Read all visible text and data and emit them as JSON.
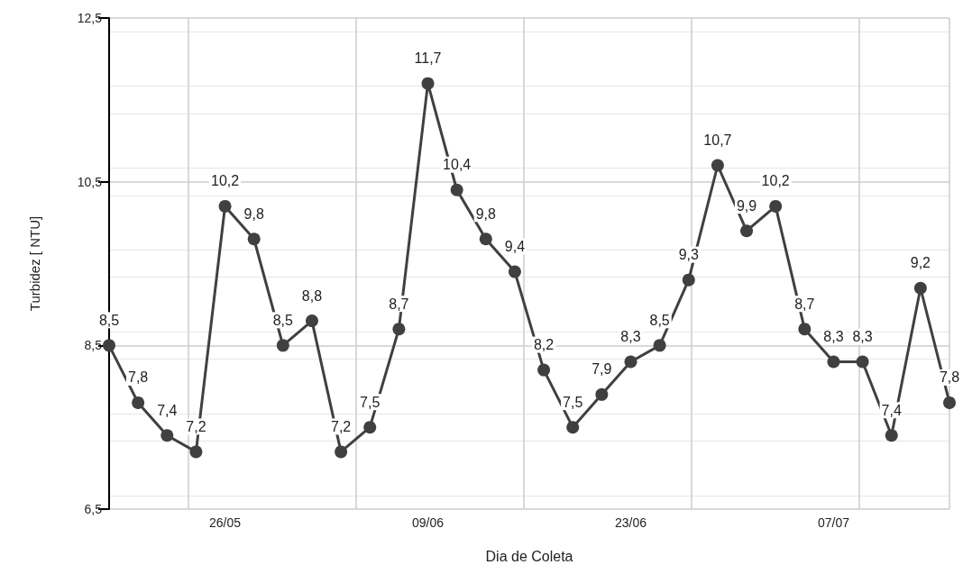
{
  "chart_data": {
    "type": "line",
    "xlabel": "Dia de Coleta",
    "ylabel": "Turbidez [ NTU]",
    "x": [
      "--05-18",
      "--05-20",
      "--05-22",
      "--05-24",
      "--05-26",
      "--05-28",
      "--05-30",
      "--06-01",
      "--06-03",
      "--06-05",
      "--06-07",
      "--06-09",
      "--06-11",
      "--06-13",
      "--06-15",
      "--06-17",
      "--06-19",
      "--06-21",
      "--06-23",
      "--06-25",
      "--06-27",
      "--06-29",
      "--07-01",
      "--07-03",
      "--07-05",
      "--07-07",
      "--07-09",
      "--07-11",
      "--07-13",
      "--07-15"
    ],
    "series": [
      {
        "color": "#404040",
        "values": [
          8.5,
          7.8,
          7.4,
          7.2,
          10.2,
          9.8,
          8.5,
          8.8,
          7.2,
          7.5,
          8.7,
          11.7,
          10.4,
          9.8,
          9.4,
          8.2,
          7.5,
          7.9,
          8.3,
          8.5,
          9.3,
          10.7,
          9.9,
          10.2,
          8.7,
          8.3,
          8.3,
          7.4,
          9.2,
          7.8
        ],
        "value_labels": [
          "8,5",
          "7,8",
          "7,4",
          "7,2",
          "10,2",
          "9,8",
          "8,5",
          "8,8",
          "7,2",
          "7,5",
          "8,7",
          "11,7",
          "10,4",
          "9,8",
          "9,4",
          "8,2",
          "7,5",
          "7,9",
          "8,3",
          "8,5",
          "9,3",
          "10,7",
          "9,9",
          "10,2",
          "8,7",
          "8,3",
          "8,3",
          "7,4",
          "9,2",
          "7,8"
        ]
      }
    ],
    "xlim": [
      "--05-18",
      "--07-15"
    ],
    "xticks": [
      {
        "value": "--05-26",
        "label": "26/05"
      },
      {
        "value": "--06-09",
        "label": "09/06"
      },
      {
        "value": "--06-23",
        "label": "23/06"
      },
      {
        "value": "--07-07",
        "label": "07/07"
      }
    ],
    "ylim": [
      6.5,
      12.5
    ],
    "yticks": [
      {
        "value": 6.5,
        "label": "6,5"
      },
      {
        "value": 8.5,
        "label": "8,5"
      },
      {
        "value": 10.5,
        "label": "10,5"
      },
      {
        "value": 12.5,
        "label": "12,5"
      }
    ],
    "grid": true,
    "marker": "circle",
    "line_style": "solid"
  }
}
